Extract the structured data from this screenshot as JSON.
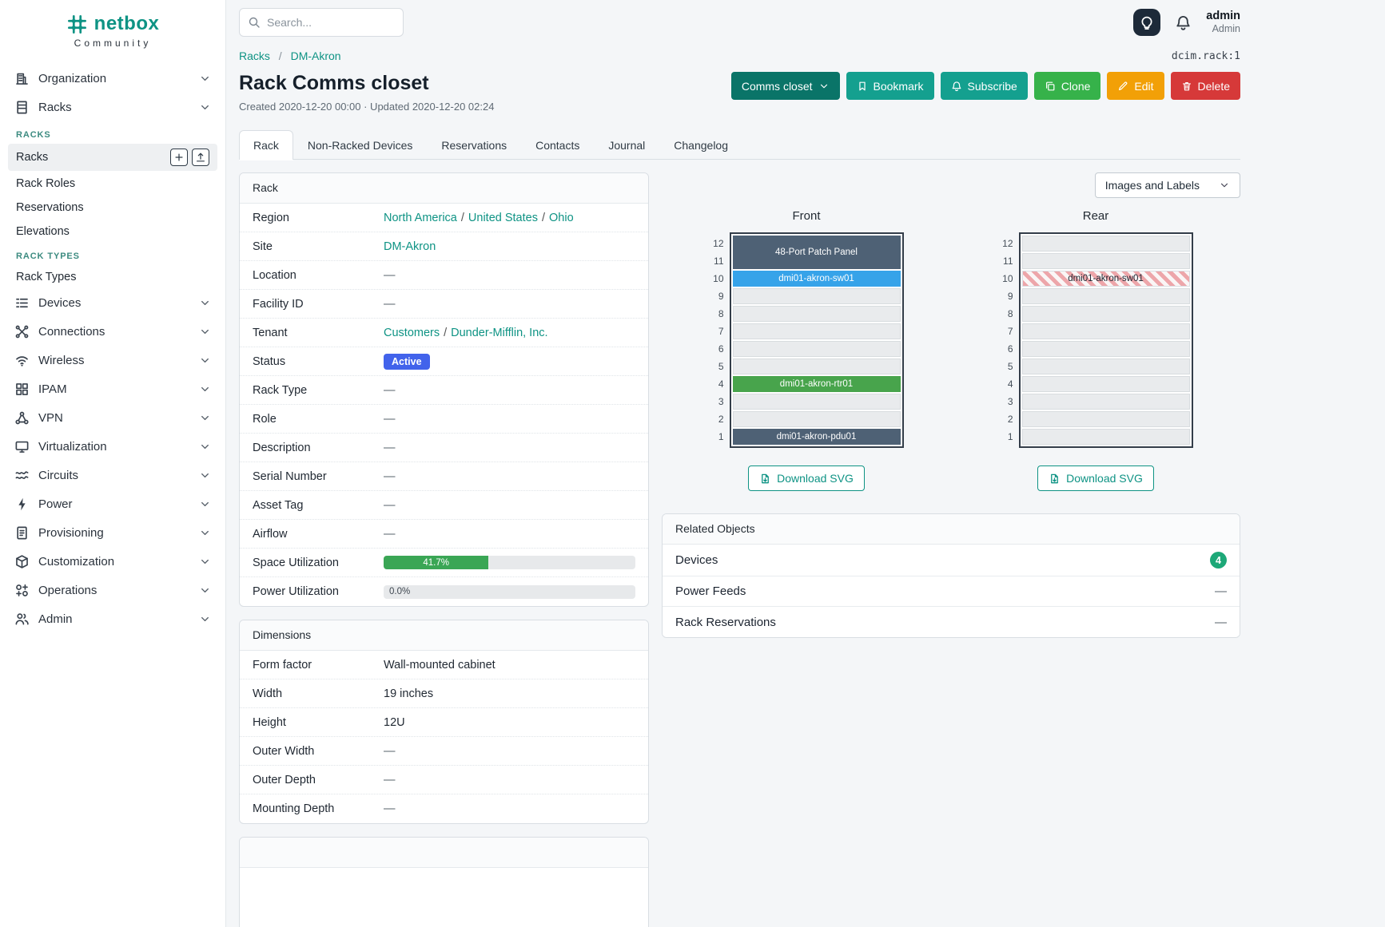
{
  "colors": {
    "teal": "#0e9384",
    "teal_dark": "#0a7468",
    "btn_teal": "#14a08f",
    "btn_green": "#36b24a",
    "btn_orange": "#f2a007",
    "btn_red": "#d63939",
    "status_blue": "#4263eb",
    "bar_green": "#3aa655",
    "dev_slate": "#4e6175",
    "dev_blue": "#36a3e9",
    "dev_green": "#48a44c",
    "badge_green": "#1da878"
  },
  "brand": {
    "name": "netbox",
    "community": "Community"
  },
  "topbar": {
    "search_placeholder": "Search...",
    "user_name": "admin",
    "user_role": "Admin"
  },
  "meta": {
    "object_id": "dcim.rack:1"
  },
  "sidebar": {
    "items": [
      {
        "label": "Organization",
        "icon": "building-icon"
      },
      {
        "label": "Racks",
        "icon": "rack-icon",
        "expanded": true,
        "groups": [
          {
            "header": "RACKS",
            "links": [
              {
                "label": "Racks",
                "active": true,
                "actions": [
                  {
                    "icon": "plus-icon",
                    "name": "add-rack-button"
                  },
                  {
                    "icon": "import-icon",
                    "name": "import-racks-button"
                  }
                ]
              },
              {
                "label": "Rack Roles"
              },
              {
                "label": "Reservations"
              },
              {
                "label": "Elevations"
              }
            ]
          },
          {
            "header": "RACK TYPES",
            "links": [
              {
                "label": "Rack Types"
              }
            ]
          }
        ]
      },
      {
        "label": "Devices",
        "icon": "devices-icon"
      },
      {
        "label": "Connections",
        "icon": "connections-icon"
      },
      {
        "label": "Wireless",
        "icon": "wireless-icon"
      },
      {
        "label": "IPAM",
        "icon": "ipam-icon"
      },
      {
        "label": "VPN",
        "icon": "vpn-icon"
      },
      {
        "label": "Virtualization",
        "icon": "virtualization-icon"
      },
      {
        "label": "Circuits",
        "icon": "circuits-icon"
      },
      {
        "label": "Power",
        "icon": "power-icon"
      },
      {
        "label": "Provisioning",
        "icon": "provisioning-icon"
      },
      {
        "label": "Customization",
        "icon": "customization-icon"
      },
      {
        "label": "Operations",
        "icon": "operations-icon"
      },
      {
        "label": "Admin",
        "icon": "admin-icon"
      }
    ]
  },
  "breadcrumb": [
    "Racks",
    "DM-Akron"
  ],
  "page": {
    "title": "Rack Comms closet",
    "meta": "Created 2020-12-20 00:00 · Updated 2020-12-20 02:24"
  },
  "actions": {
    "context": "Comms closet",
    "bookmark": "Bookmark",
    "subscribe": "Subscribe",
    "clone": "Clone",
    "edit": "Edit",
    "delete": "Delete"
  },
  "tabs": [
    {
      "label": "Rack",
      "active": true
    },
    {
      "label": "Non-Racked Devices"
    },
    {
      "label": "Reservations"
    },
    {
      "label": "Contacts"
    },
    {
      "label": "Journal"
    },
    {
      "label": "Changelog"
    }
  ],
  "rack_card": {
    "title": "Rack",
    "rows": [
      {
        "label": "Region",
        "type": "links",
        "links": [
          "North America",
          "United States",
          "Ohio"
        ]
      },
      {
        "label": "Site",
        "type": "links",
        "links": [
          "DM-Akron"
        ]
      },
      {
        "label": "Location",
        "type": "text",
        "text": "—",
        "muted": true
      },
      {
        "label": "Facility ID",
        "type": "text",
        "text": "—",
        "muted": true
      },
      {
        "label": "Tenant",
        "type": "links",
        "links": [
          "Customers",
          "Dunder-Mifflin, Inc."
        ]
      },
      {
        "label": "Status",
        "type": "badge",
        "text": "Active"
      },
      {
        "label": "Rack Type",
        "type": "text",
        "text": "—",
        "muted": true
      },
      {
        "label": "Role",
        "type": "text",
        "text": "—",
        "muted": true
      },
      {
        "label": "Description",
        "type": "text",
        "text": "—",
        "muted": true
      },
      {
        "label": "Serial Number",
        "type": "text",
        "text": "—",
        "muted": true
      },
      {
        "label": "Asset Tag",
        "type": "text",
        "text": "—",
        "muted": true
      },
      {
        "label": "Airflow",
        "type": "text",
        "text": "—",
        "muted": true
      },
      {
        "label": "Space Utilization",
        "type": "progress",
        "percent": 41.7,
        "text": "41.7%"
      },
      {
        "label": "Power Utilization",
        "type": "progress",
        "percent": 0,
        "text": "0.0%"
      }
    ]
  },
  "dimensions_card": {
    "title": "Dimensions",
    "rows": [
      {
        "label": "Form factor",
        "type": "text",
        "text": "Wall-mounted cabinet"
      },
      {
        "label": "Width",
        "type": "text",
        "text": "19 inches"
      },
      {
        "label": "Height",
        "type": "text",
        "text": "12U"
      },
      {
        "label": "Outer Width",
        "type": "text",
        "text": "—",
        "muted": true
      },
      {
        "label": "Outer Depth",
        "type": "text",
        "text": "—",
        "muted": true
      },
      {
        "label": "Mounting Depth",
        "type": "text",
        "text": "—",
        "muted": true
      }
    ]
  },
  "elevation": {
    "view_selector": "Images and Labels",
    "download_label": "Download SVG",
    "u_height": 12,
    "front": {
      "title": "Front",
      "units": [
        {
          "label": "48-Port Patch Panel",
          "style": "slate",
          "span": 2
        },
        {
          "label": "dmi01-akron-sw01",
          "style": "blue",
          "span": 1
        },
        {},
        {},
        {},
        {},
        {},
        {
          "label": "dmi01-akron-rtr01",
          "style": "green",
          "span": 1
        },
        {},
        {},
        {
          "label": "dmi01-akron-pdu01",
          "style": "slate",
          "span": 1
        }
      ]
    },
    "rear": {
      "title": "Rear",
      "units": [
        {},
        {},
        {
          "label": "dmi01-akron-sw01",
          "style": "stripes",
          "span": 1
        },
        {},
        {},
        {},
        {},
        {},
        {},
        {},
        {},
        {}
      ]
    }
  },
  "related_objects": {
    "title": "Related Objects",
    "rows": [
      {
        "label": "Devices",
        "badge": "4"
      },
      {
        "label": "Power Feeds",
        "text": "—"
      },
      {
        "label": "Rack Reservations",
        "text": "—"
      }
    ]
  }
}
